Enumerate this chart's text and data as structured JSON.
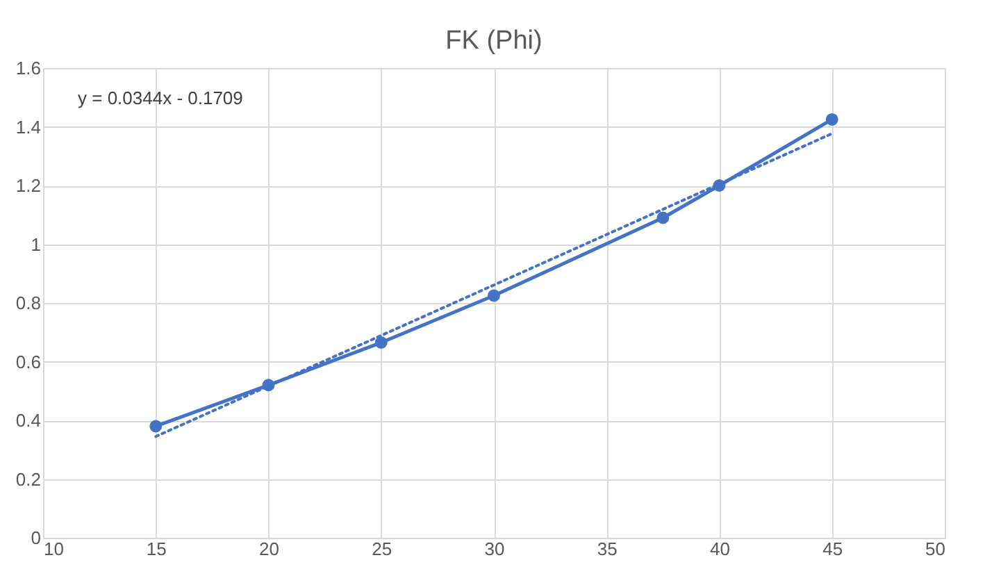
{
  "chart_data": {
    "type": "line",
    "title": "FK (Phi)",
    "xlim": [
      10,
      50
    ],
    "xticks": [
      10,
      15,
      20,
      25,
      30,
      35,
      40,
      45,
      50
    ],
    "ylim": [
      0,
      1.6
    ],
    "yticks": [
      0,
      0.2,
      0.4,
      0.6,
      0.8,
      1,
      1.2,
      1.4,
      1.6
    ],
    "grid": true,
    "series": [
      {
        "color": "#4472c4",
        "x": [
          15,
          20,
          25,
          30,
          37.5,
          40,
          45
        ],
        "values": [
          0.38,
          0.52,
          0.665,
          0.825,
          1.09,
          1.2,
          1.425
        ],
        "marker": "circle",
        "line_style": "solid"
      },
      {
        "type": "line",
        "color": "#4472c4",
        "x": [
          15,
          45
        ],
        "values": [
          0.345,
          1.377
        ],
        "marker": "none",
        "line_style": "dotted"
      }
    ],
    "annotations": [
      "y = 0.0344x - 0.1709"
    ]
  }
}
